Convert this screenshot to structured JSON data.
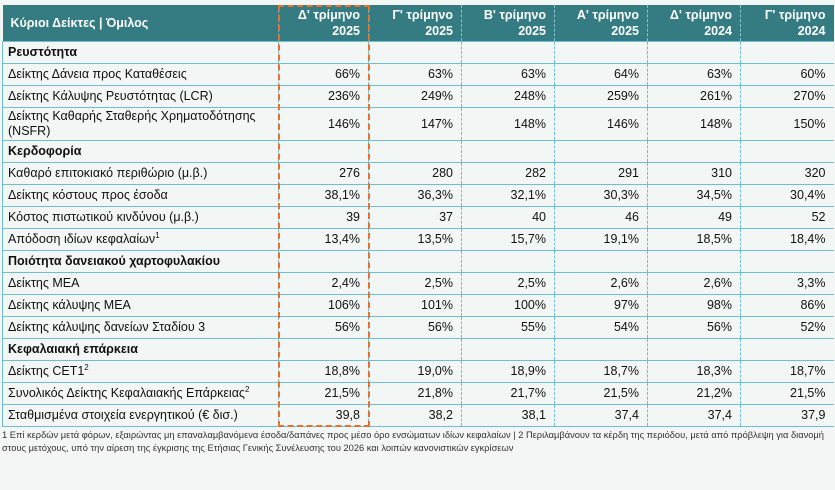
{
  "headers": [
    "Κύριοι Δείκτες | Όμιλος",
    "Δ' τρίμηνο 2025",
    "Γ' τρίμηνο 2025",
    "Β' τρίμηνο 2025",
    "Α' τρίμηνο 2025",
    "Δ' τρίμηνο 2024",
    "Γ' τρίμηνο 2024"
  ],
  "rows": [
    {
      "type": "section",
      "label": "Ρευστότητα"
    },
    {
      "label": "Δείκτης Δάνεια προς Καταθέσεις",
      "values": [
        "66%",
        "63%",
        "63%",
        "64%",
        "63%",
        "60%"
      ]
    },
    {
      "label": "Δείκτης Κάλυψης Ρευστότητας (LCR)",
      "values": [
        "236%",
        "249%",
        "248%",
        "259%",
        "261%",
        "270%"
      ]
    },
    {
      "label": "Δείκτης Καθαρής Σταθερής Χρηματοδότησης (NSFR)",
      "tall": true,
      "values": [
        "146%",
        "147%",
        "148%",
        "146%",
        "148%",
        "150%"
      ]
    },
    {
      "type": "section",
      "label": "Κερδοφορία"
    },
    {
      "label": "Καθαρό επιτοκιακό περιθώριο (μ.β.)",
      "values": [
        "276",
        "280",
        "282",
        "291",
        "310",
        "320"
      ]
    },
    {
      "label": "Δείκτης κόστους προς έσοδα",
      "values": [
        "38,1%",
        "36,3%",
        "32,1%",
        "30,3%",
        "34,5%",
        "30,4%"
      ]
    },
    {
      "label": "Κόστος πιστωτικού κινδύνου (μ.β.)",
      "values": [
        "39",
        "37",
        "40",
        "46",
        "49",
        "52"
      ]
    },
    {
      "label": "Απόδοση ιδίων κεφαλαίων",
      "sup": "1",
      "values": [
        "13,4%",
        "13,5%",
        "15,7%",
        "19,1%",
        "18,5%",
        "18,4%"
      ]
    },
    {
      "type": "section",
      "label": "Ποιότητα δανειακού χαρτοφυλακίου"
    },
    {
      "label": "Δείκτης ΜΕΑ",
      "values": [
        "2,4%",
        "2,5%",
        "2,5%",
        "2,6%",
        "2,6%",
        "3,3%"
      ]
    },
    {
      "label": "Δείκτης κάλυψης ΜΕΑ",
      "values": [
        "106%",
        "101%",
        "100%",
        "97%",
        "98%",
        "86%"
      ]
    },
    {
      "label": "Δείκτης κάλυψης δανείων Σταδίου 3",
      "values": [
        "56%",
        "56%",
        "55%",
        "54%",
        "56%",
        "52%"
      ]
    },
    {
      "type": "section",
      "label": "Κεφαλαιακή επάρκεια"
    },
    {
      "label": "Δείκτης CET1",
      "sup": "2",
      "values": [
        "18,8%",
        "19,0%",
        "18,9%",
        "18,7%",
        "18,3%",
        "18,7%"
      ]
    },
    {
      "label": "Συνολικός Δείκτης Κεφαλαιακής Επάρκειας",
      "sup": "2",
      "values": [
        "21,5%",
        "21,8%",
        "21,7%",
        "21,5%",
        "21,2%",
        "21,5%"
      ]
    },
    {
      "label": "Σταθμισμένα στοιχεία ενεργητικού (€ δισ.)",
      "values": [
        "39,8",
        "38,2",
        "38,1",
        "37,4",
        "37,4",
        "37,9"
      ]
    }
  ],
  "footnote": "1 Επί κερδών μετά φόρων, εξαιρώντας μη επαναλαμβανόμενα έσοδα/δαπάνες προς μέσο όρο ενσώματων ιδίων κεφαλαίων | 2 Περιλαμβάνουν τα κέρδη της περιόδου, μετά από πρόβλεψη για διανομή στους μετόχους, υπό την αίρεση της έγκρισης της Ετήσιας Γενικής Συνέλευσης του 2026 και λοιπών κανονιστικών εγκρίσεων",
  "colors": {
    "header": "#347c82",
    "highlight": "#e8702f",
    "border": "#6fbed0",
    "background": "#f2f7f5"
  }
}
